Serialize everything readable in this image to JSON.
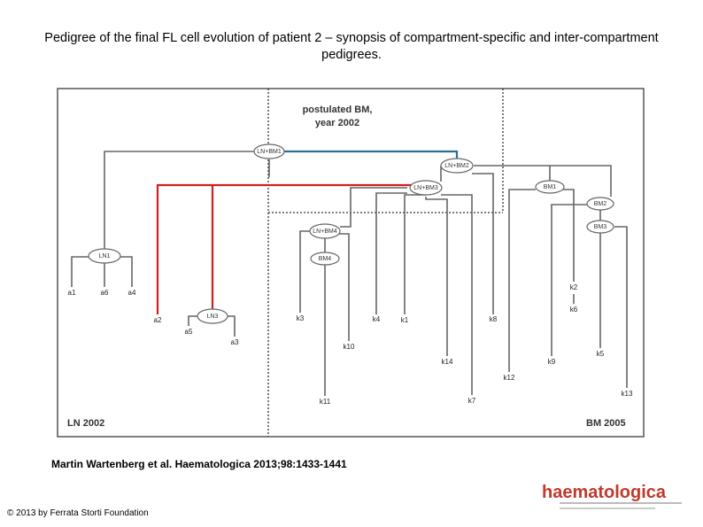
{
  "header": {
    "title": "Pedigree of the final FL cell evolution of patient 2 – synopsis of compartment-specific and inter-compartment pedigrees."
  },
  "figure": {
    "postulated": [
      "postulated BM,",
      "year 2002"
    ],
    "left_region": "LN 2002",
    "right_region": "BM 2005",
    "nodes": [
      "LN+BM1",
      "LN+BM2",
      "LN+BM3",
      "BM1",
      "BM2",
      "BM3",
      "LN+BM4",
      "BM4",
      "LN1",
      "LN3"
    ],
    "leaves": [
      "a1",
      "a6",
      "a4",
      "a2",
      "a5",
      "a3",
      "k3",
      "k4",
      "k1",
      "k10",
      "k14",
      "k11",
      "k7",
      "k8",
      "k12",
      "k9",
      "k2",
      "k6",
      "k5",
      "k13"
    ]
  },
  "citation": "Martin Wartenberg et al. Haematologica 2013;98:1433-1441",
  "copyright": "© 2013 by Ferrata Storti Foundation",
  "logo": "haematologica"
}
